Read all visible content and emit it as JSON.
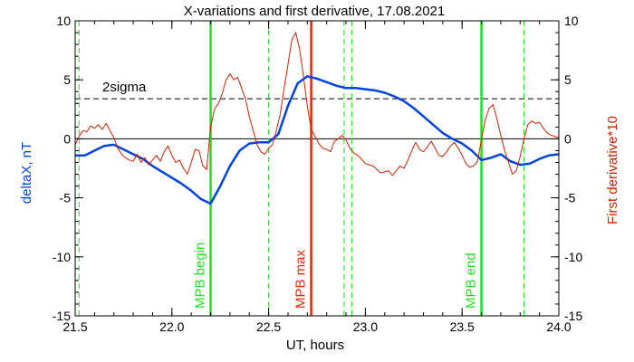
{
  "chart_data": {
    "type": "line",
    "title": "X-variations and first derivative, 17.08.2021",
    "xlabel": "UT, hours",
    "ylabel_left": "deltaX, nT",
    "ylabel_right": "First derivative*10",
    "xlim": [
      21.5,
      24.0
    ],
    "ylim": [
      -15,
      10
    ],
    "x_ticks": [
      "21.5",
      "22.0",
      "22.5",
      "23.0",
      "23.5",
      "24.0"
    ],
    "y_ticks": [
      "-15",
      "-10",
      "-5",
      "0",
      "5",
      "10"
    ],
    "colors": {
      "deltaX": "#0044dd",
      "derivative": "#cc2200",
      "mpb": "#22dd22",
      "max": "#ee2200",
      "axis": "#000000"
    },
    "reference_lines": [
      {
        "label": "2sigma",
        "value": 3.4,
        "style": "dashed"
      },
      {
        "label": "",
        "value": 0,
        "style": "solid"
      }
    ],
    "markers": [
      {
        "label": "MPB begin",
        "x": 22.2,
        "style": "solid",
        "color": "#22dd22"
      },
      {
        "label": "MPB max",
        "x": 22.72,
        "style": "solid",
        "color": "#ee2200"
      },
      {
        "label": "MPB end",
        "x": 23.6,
        "style": "solid",
        "color": "#22dd22"
      },
      {
        "label": "",
        "x": 21.52,
        "style": "dashed",
        "color": "#22dd22"
      },
      {
        "label": "",
        "x": 22.5,
        "style": "dashed",
        "color": "#22dd22"
      },
      {
        "label": "",
        "x": 22.89,
        "style": "dashed",
        "color": "#22dd22"
      },
      {
        "label": "",
        "x": 22.93,
        "style": "dashed",
        "color": "#22dd22"
      },
      {
        "label": "",
        "x": 23.82,
        "style": "dashed",
        "color": "#22dd22"
      }
    ],
    "series": [
      {
        "name": "deltaX, nT",
        "axis": "left",
        "x": [
          21.5,
          21.55,
          21.6,
          21.65,
          21.7,
          21.75,
          21.8,
          21.85,
          21.9,
          21.95,
          22.0,
          22.05,
          22.1,
          22.15,
          22.2,
          22.25,
          22.3,
          22.35,
          22.4,
          22.45,
          22.5,
          22.55,
          22.6,
          22.65,
          22.7,
          22.75,
          22.8,
          22.85,
          22.9,
          22.95,
          23.0,
          23.05,
          23.1,
          23.15,
          23.2,
          23.25,
          23.3,
          23.35,
          23.4,
          23.45,
          23.5,
          23.55,
          23.6,
          23.65,
          23.7,
          23.75,
          23.8,
          23.85,
          23.9,
          23.95,
          24.0
        ],
        "values": [
          -1.4,
          -1.4,
          -1.0,
          -0.6,
          -0.5,
          -0.9,
          -1.3,
          -1.7,
          -2.3,
          -2.8,
          -3.3,
          -3.8,
          -4.4,
          -5.1,
          -5.5,
          -4.0,
          -2.3,
          -1.0,
          -0.4,
          -0.3,
          -0.3,
          0.4,
          2.8,
          4.7,
          5.3,
          5.1,
          4.8,
          4.5,
          4.3,
          4.3,
          4.2,
          4.1,
          3.9,
          3.6,
          3.2,
          2.6,
          1.9,
          1.2,
          0.5,
          0.0,
          -0.4,
          -1.0,
          -1.8,
          -1.6,
          -1.3,
          -1.9,
          -2.2,
          -2.1,
          -1.7,
          -1.4,
          -1.3
        ]
      },
      {
        "name": "First derivative*10",
        "axis": "right",
        "x": [
          21.5,
          21.52,
          21.54,
          21.56,
          21.58,
          21.6,
          21.62,
          21.64,
          21.66,
          21.68,
          21.7,
          21.72,
          21.74,
          21.76,
          21.78,
          21.8,
          21.82,
          21.84,
          21.86,
          21.88,
          21.9,
          21.92,
          21.94,
          21.96,
          21.98,
          22.0,
          22.02,
          22.04,
          22.06,
          22.08,
          22.1,
          22.12,
          22.14,
          22.16,
          22.18,
          22.2,
          22.22,
          22.24,
          22.26,
          22.28,
          22.3,
          22.32,
          22.34,
          22.36,
          22.38,
          22.4,
          22.42,
          22.44,
          22.46,
          22.48,
          22.5,
          22.52,
          22.54,
          22.56,
          22.58,
          22.6,
          22.62,
          22.64,
          22.66,
          22.68,
          22.7,
          22.72,
          22.74,
          22.76,
          22.78,
          22.8,
          22.82,
          22.84,
          22.86,
          22.88,
          22.9,
          22.92,
          22.94,
          22.96,
          22.98,
          23.0,
          23.02,
          23.04,
          23.06,
          23.08,
          23.1,
          23.12,
          23.14,
          23.16,
          23.18,
          23.2,
          23.22,
          23.24,
          23.26,
          23.28,
          23.3,
          23.32,
          23.34,
          23.36,
          23.38,
          23.4,
          23.42,
          23.44,
          23.46,
          23.48,
          23.5,
          23.52,
          23.54,
          23.56,
          23.58,
          23.6,
          23.62,
          23.64,
          23.66,
          23.68,
          23.7,
          23.72,
          23.74,
          23.76,
          23.78,
          23.8,
          23.82,
          23.84,
          23.86,
          23.88,
          23.9,
          23.92,
          23.94,
          23.96,
          23.98,
          24.0
        ],
        "values": [
          -0.5,
          0.2,
          0.7,
          0.6,
          1.1,
          0.9,
          1.2,
          0.8,
          1.3,
          0.7,
          0.1,
          -0.8,
          -1.3,
          -1.6,
          -1.8,
          -1.9,
          -1.3,
          -2.0,
          -1.6,
          -2.2,
          -1.8,
          -1.4,
          -1.9,
          -1.1,
          -0.6,
          -1.4,
          -2.0,
          -1.8,
          -2.5,
          -3.0,
          -2.0,
          -0.9,
          -1.0,
          -2.3,
          -2.6,
          1.0,
          2.5,
          3.0,
          3.8,
          5.0,
          5.5,
          5.0,
          5.2,
          4.3,
          3.4,
          1.9,
          0.7,
          -0.5,
          -1.1,
          -1.3,
          -0.8,
          -0.5,
          0.7,
          2.1,
          4.3,
          6.3,
          8.4,
          9.0,
          7.6,
          5.3,
          2.8,
          0.8,
          0.2,
          -0.4,
          -0.8,
          -0.9,
          -1.1,
          -0.2,
          0.0,
          0.3,
          -0.1,
          -0.8,
          -1.2,
          -1.4,
          -1.7,
          -2.1,
          -2.2,
          -2.3,
          -2.6,
          -2.9,
          -2.8,
          -2.7,
          -3.1,
          -2.7,
          -2.3,
          -2.5,
          -1.8,
          -1.0,
          -0.3,
          -0.9,
          -1.1,
          -0.7,
          -0.2,
          -0.8,
          -1.4,
          -1.5,
          -1.1,
          -0.6,
          -0.3,
          -0.8,
          -1.4,
          -2.1,
          -2.4,
          -2.3,
          -1.9,
          0.0,
          1.6,
          2.6,
          2.9,
          1.7,
          0.3,
          -1.0,
          -2.0,
          -3.0,
          -2.7,
          -1.5,
          0.0,
          1.2,
          1.5,
          1.3,
          1.4,
          0.9,
          0.5,
          0.3,
          0.2,
          0.1
        ]
      }
    ]
  }
}
